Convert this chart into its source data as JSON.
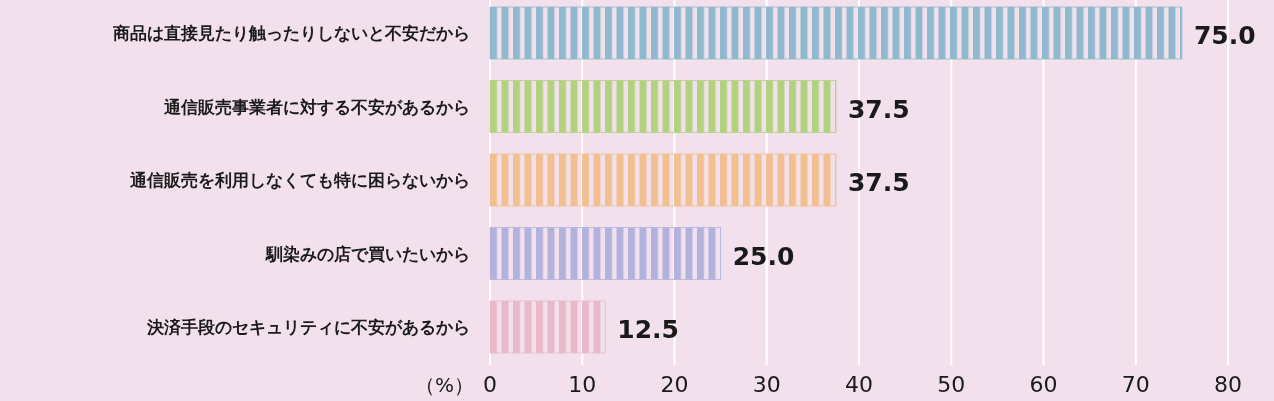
{
  "chart_data": {
    "type": "bar",
    "orientation": "horizontal",
    "xlabel": "（%）",
    "categories": [
      "商品は直接見たり触ったりしないと不安だから",
      "通信販売事業者に対する不安があるから",
      "通信販売を利用しなくても特に困らないから",
      "馴染みの店で買いたいから",
      "決済手段のセキュリティに不安があるから"
    ],
    "values": [
      75.0,
      37.5,
      37.5,
      25.0,
      12.5
    ],
    "value_labels": [
      "75.0",
      "37.5",
      "37.5",
      "25.0",
      "12.5"
    ],
    "colors": [
      "#8fb9cc",
      "#b3d27f",
      "#f1bf90",
      "#b2b2dc",
      "#e9b9c9"
    ],
    "xlim": [
      0,
      80
    ],
    "xticks": [
      0,
      10,
      20,
      30,
      40,
      50,
      60,
      70,
      80
    ],
    "grid": "x"
  }
}
